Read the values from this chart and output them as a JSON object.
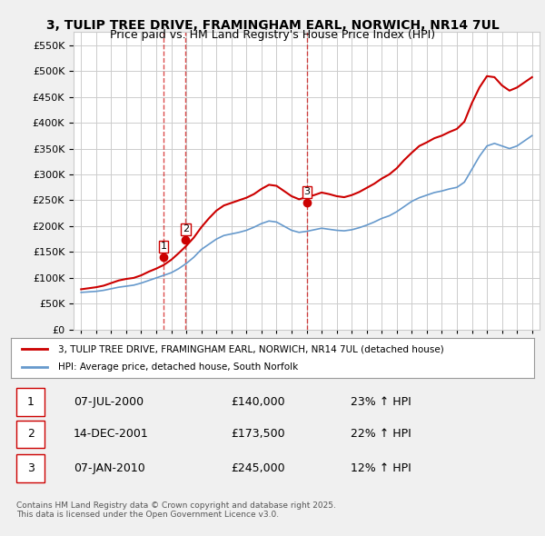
{
  "title": "3, TULIP TREE DRIVE, FRAMINGHAM EARL, NORWICH, NR14 7UL",
  "subtitle": "Price paid vs. HM Land Registry's House Price Index (HPI)",
  "ylabel": "",
  "ylim": [
    0,
    575000
  ],
  "yticks": [
    0,
    50000,
    100000,
    150000,
    200000,
    250000,
    300000,
    350000,
    400000,
    450000,
    500000,
    550000
  ],
  "bg_color": "#f0f0f0",
  "plot_bg": "#ffffff",
  "red_color": "#cc0000",
  "blue_color": "#6699cc",
  "legend_label_red": "3, TULIP TREE DRIVE, FRAMINGHAM EARL, NORWICH, NR14 7UL (detached house)",
  "legend_label_blue": "HPI: Average price, detached house, South Norfolk",
  "transactions": [
    {
      "num": 1,
      "date": "07-JUL-2000",
      "price": "£140,000",
      "change": "23% ↑ HPI",
      "year": 2000.5
    },
    {
      "num": 2,
      "date": "14-DEC-2001",
      "price": "£173,500",
      "change": "22% ↑ HPI",
      "year": 2001.95
    },
    {
      "num": 3,
      "date": "07-JAN-2010",
      "price": "£245,000",
      "change": "12% ↑ HPI",
      "year": 2010.03
    }
  ],
  "footnote": "Contains HM Land Registry data © Crown copyright and database right 2025.\nThis data is licensed under the Open Government Licence v3.0.",
  "hpi_years": [
    1995,
    1995.5,
    1996,
    1996.5,
    1997,
    1997.5,
    1998,
    1998.5,
    1999,
    1999.5,
    2000,
    2000.5,
    2001,
    2001.5,
    2002,
    2002.5,
    2003,
    2003.5,
    2004,
    2004.5,
    2005,
    2005.5,
    2006,
    2006.5,
    2007,
    2007.5,
    2008,
    2008.5,
    2009,
    2009.5,
    2010,
    2010.5,
    2011,
    2011.5,
    2012,
    2012.5,
    2013,
    2013.5,
    2014,
    2014.5,
    2015,
    2015.5,
    2016,
    2016.5,
    2017,
    2017.5,
    2018,
    2018.5,
    2019,
    2019.5,
    2020,
    2020.5,
    2021,
    2021.5,
    2022,
    2022.5,
    2023,
    2023.5,
    2024,
    2024.5,
    2025
  ],
  "hpi_values": [
    72000,
    73000,
    74000,
    76000,
    79000,
    82000,
    84000,
    86000,
    90000,
    95000,
    100000,
    105000,
    110000,
    118000,
    128000,
    140000,
    155000,
    165000,
    175000,
    182000,
    185000,
    188000,
    192000,
    198000,
    205000,
    210000,
    208000,
    200000,
    192000,
    188000,
    190000,
    193000,
    196000,
    194000,
    192000,
    191000,
    193000,
    197000,
    202000,
    208000,
    215000,
    220000,
    228000,
    238000,
    248000,
    255000,
    260000,
    265000,
    268000,
    272000,
    275000,
    285000,
    310000,
    335000,
    355000,
    360000,
    355000,
    350000,
    355000,
    365000,
    375000
  ],
  "red_years": [
    1995,
    1995.5,
    1996,
    1996.5,
    1997,
    1997.5,
    1998,
    1998.5,
    1999,
    1999.5,
    2000,
    2000.5,
    2001,
    2001.5,
    2002,
    2002.5,
    2003,
    2003.5,
    2004,
    2004.5,
    2005,
    2005.5,
    2006,
    2006.5,
    2007,
    2007.5,
    2008,
    2008.5,
    2009,
    2009.5,
    2010,
    2010.5,
    2011,
    2011.5,
    2012,
    2012.5,
    2013,
    2013.5,
    2014,
    2014.5,
    2015,
    2015.5,
    2016,
    2016.5,
    2017,
    2017.5,
    2018,
    2018.5,
    2019,
    2019.5,
    2020,
    2020.5,
    2021,
    2021.5,
    2022,
    2022.5,
    2023,
    2023.5,
    2024,
    2024.5,
    2025
  ],
  "red_values": [
    78000,
    80000,
    82000,
    85000,
    90000,
    95000,
    98000,
    100000,
    105000,
    112000,
    118000,
    125000,
    135000,
    148000,
    162000,
    178000,
    198000,
    215000,
    230000,
    240000,
    245000,
    250000,
    255000,
    262000,
    272000,
    280000,
    278000,
    268000,
    258000,
    252000,
    256000,
    260000,
    265000,
    262000,
    258000,
    256000,
    260000,
    266000,
    274000,
    282000,
    292000,
    300000,
    312000,
    328000,
    342000,
    355000,
    362000,
    370000,
    375000,
    382000,
    388000,
    402000,
    438000,
    468000,
    490000,
    488000,
    472000,
    462000,
    468000,
    478000,
    488000
  ]
}
